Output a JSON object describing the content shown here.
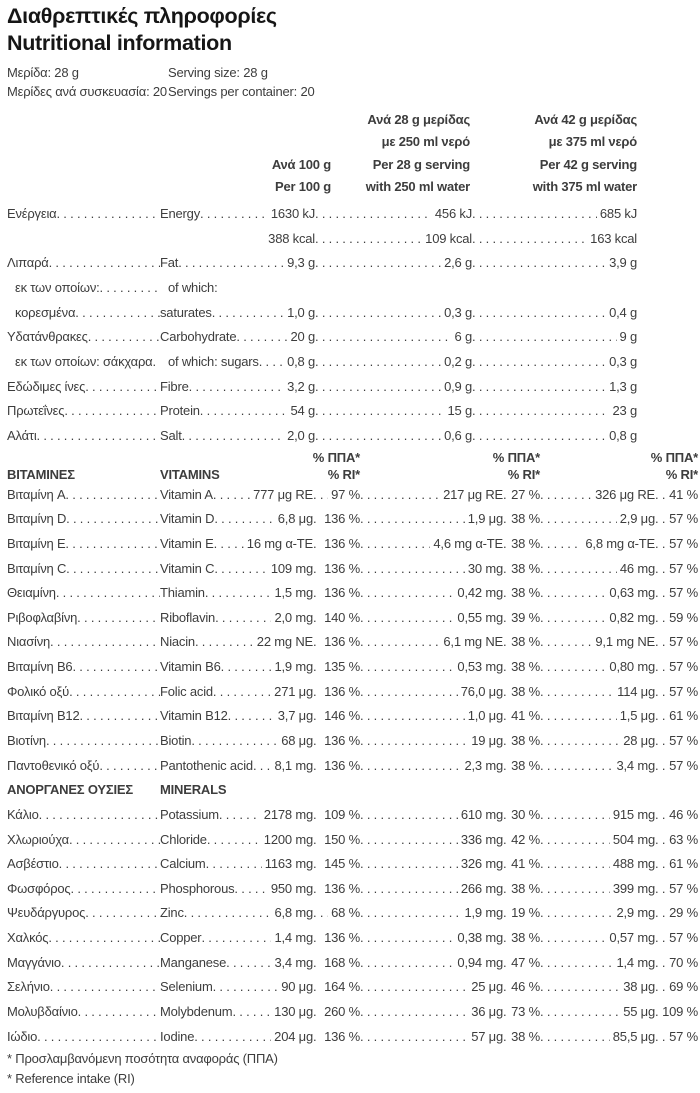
{
  "colors": {
    "text": "#3d3d3d",
    "heading": "#161616"
  },
  "title": {
    "el": "Διαθρεπτικές πληροφορίες",
    "en": "Nutritional information"
  },
  "serving": {
    "size_el": "Μερίδα: 28 g",
    "size_en": "Serving size: 28 g",
    "count_el": "Μερίδες ανά συσκευασία: 20",
    "count_en": "Servings per container: 20"
  },
  "columns": {
    "col1": [
      "Ανά 100 g",
      "Per 100 g"
    ],
    "col2": [
      "Ανά 28 g μερίδας",
      "με 250 ml νερό",
      "Per 28 g serving",
      "with 250 ml water"
    ],
    "col3": [
      "Ανά 42 g μερίδας",
      "με 375 ml νερό",
      "Per 42 g serving",
      "with 375 ml water"
    ]
  },
  "pct_header": {
    "line1": "% ΠΠΑ*",
    "line2": "% RI*"
  },
  "macros": [
    {
      "el": "Ενέργεια",
      "en": "Energy",
      "vals": [
        "1630 kJ",
        "456 kJ",
        "685 kJ"
      ]
    },
    {
      "el": "",
      "en": "",
      "vals": [
        "388 kcal",
        "109 kcal",
        "163 kcal"
      ]
    },
    {
      "el": "Λιπαρά",
      "en": "Fat",
      "vals": [
        "9,3 g",
        "2,6 g",
        "3,9 g"
      ]
    },
    {
      "el": "εκ των οποίων:",
      "en": "of which:",
      "si": true,
      "sie": true,
      "vals": [
        "",
        "",
        ""
      ]
    },
    {
      "el": "κορεσμένα",
      "en": "saturates",
      "si": true,
      "vals": [
        "1,0 g",
        "0,3 g",
        "0,4 g"
      ]
    },
    {
      "el": "Υδατάνθρακες",
      "en": "Carbohydrate",
      "vals": [
        "20 g",
        "6 g",
        "9 g"
      ]
    },
    {
      "el": "εκ των οποίων: σάκχαρα",
      "en": "of which: sugars",
      "si": true,
      "sie": true,
      "vals": [
        "0,8 g",
        "0,2 g",
        "0,3 g"
      ]
    },
    {
      "el": "Εδώδιμες ίνες",
      "en": "Fibre",
      "vals": [
        "3,2 g",
        "0,9 g",
        "1,3 g"
      ]
    },
    {
      "el": "Πρωτεΐνες",
      "en": "Protein",
      "vals": [
        "54 g",
        "15 g",
        "23 g"
      ]
    },
    {
      "el": "Αλάτι",
      "en": "Salt",
      "vals": [
        "2,0 g",
        "0,6 g",
        "0,8 g"
      ]
    }
  ],
  "vitamins_header": {
    "el": "ΒΙΤΑΜΙΝΕΣ",
    "en": "VITAMINS"
  },
  "vitamins": [
    {
      "el": "Βιταμίνη A",
      "en": "Vitamin A",
      "vals": [
        "777 μg RE",
        "97 %",
        "217 μg RE",
        "27 %",
        "326 μg RE",
        "41 %"
      ]
    },
    {
      "el": "Βιταμίνη D",
      "en": "Vitamin D",
      "vals": [
        "6,8 μg",
        "136 %",
        "1,9 μg",
        "38 %",
        "2,9 μg",
        "57 %"
      ]
    },
    {
      "el": "Βιταμίνη E",
      "en": "Vitamin E",
      "vals": [
        "16 mg α-TE",
        "136 %",
        "4,6 mg α-TE",
        "38 %",
        "6,8 mg α-TE",
        "57 %"
      ]
    },
    {
      "el": "Βιταμίνη C",
      "en": "Vitamin C",
      "vals": [
        "109 mg",
        "136 %",
        "30 mg",
        "38 %",
        "46 mg",
        "57 %"
      ]
    },
    {
      "el": "Θειαμίνη",
      "en": "Thiamin",
      "vals": [
        "1,5 mg",
        "136 %",
        "0,42 mg",
        "38 %",
        "0,63 mg",
        "57 %"
      ]
    },
    {
      "el": "Ριβοφλαβίνη",
      "en": "Riboflavin",
      "vals": [
        "2,0 mg",
        "140 %",
        "0,55 mg",
        "39 %",
        "0,82 mg",
        "59 %"
      ]
    },
    {
      "el": "Νιασίνη",
      "en": "Niacin",
      "vals": [
        "22 mg NE",
        "136 %",
        "6,1 mg NE",
        "38 %",
        "9,1 mg NE",
        "57 %"
      ]
    },
    {
      "el": "Βιταμίνη B6",
      "en": "Vitamin B6",
      "vals": [
        "1,9 mg",
        "135 %",
        "0,53 mg",
        "38 %",
        "0,80 mg",
        "57 %"
      ]
    },
    {
      "el": "Φολικό οξύ",
      "en": "Folic acid",
      "vals": [
        "271 μg",
        "136 %",
        "76,0 μg",
        "38 %",
        "114 μg",
        "57 %"
      ]
    },
    {
      "el": "Βιταμίνη B12",
      "en": "Vitamin B12",
      "vals": [
        "3,7 μg",
        "146 %",
        "1,0 μg",
        "41 %",
        "1,5 μg",
        "61 %"
      ]
    },
    {
      "el": "Βιοτίνη",
      "en": "Biotin",
      "vals": [
        "68 μg",
        "136 %",
        "19 μg",
        "38 %",
        "28 μg",
        "57 %"
      ]
    },
    {
      "el": "Παντοθενικό οξύ",
      "en": "Pantothenic acid",
      "vals": [
        "8,1 mg",
        "136 %",
        "2,3 mg",
        "38 %",
        "3,4 mg",
        "57 %"
      ]
    }
  ],
  "minerals_header": {
    "el": "ΑΝΟΡΓΑΝΕΣ ΟΥΣΙΕΣ",
    "en": "MINERALS"
  },
  "minerals": [
    {
      "el": "Κάλιο",
      "en": "Potassium",
      "vals": [
        "2178 mg",
        "109 %",
        "610 mg",
        "30 %",
        "915 mg",
        "46 %"
      ]
    },
    {
      "el": "Χλωριούχα",
      "en": "Chloride",
      "vals": [
        "1200 mg",
        "150 %",
        "336 mg",
        "42 %",
        "504 mg",
        "63 %"
      ]
    },
    {
      "el": "Ασβέστιο",
      "en": "Calcium",
      "vals": [
        "1163 mg",
        "145 %",
        "326 mg",
        "41 %",
        "488 mg",
        "61 %"
      ]
    },
    {
      "el": "Φωσφόρος",
      "en": "Phosphorous",
      "vals": [
        "950 mg",
        "136 %",
        "266 mg",
        "38 %",
        "399 mg",
        "57 %"
      ]
    },
    {
      "el": "Ψευδάργυρος",
      "en": "Zinc",
      "vals": [
        "6,8 mg",
        "68 %",
        "1,9 mg",
        "19 %",
        "2,9 mg",
        "29 %"
      ]
    },
    {
      "el": "Χαλκός",
      "en": "Copper",
      "vals": [
        "1,4 mg",
        "136 %",
        "0,38 mg",
        "38 %",
        "0,57 mg",
        "57 %"
      ]
    },
    {
      "el": "Μαγγάνιο",
      "en": "Manganese",
      "vals": [
        "3,4 mg",
        "168 %",
        "0,94 mg",
        "47 %",
        "1,4 mg",
        "70 %"
      ]
    },
    {
      "el": "Σελήνιο",
      "en": "Selenium",
      "vals": [
        "90 μg",
        "164 %",
        "25 μg",
        "46 %",
        "38 μg",
        "69 %"
      ]
    },
    {
      "el": "Μολυβδαίνιο",
      "en": "Molybdenum",
      "vals": [
        "130 μg",
        "260 %",
        "36 μg",
        "73 %",
        "55 μg",
        "109 %"
      ]
    },
    {
      "el": "Ιώδιο",
      "en": "Iodine",
      "vals": [
        "204 μg",
        "136 %",
        "57 μg",
        "38 %",
        "85,5 μg",
        "57 %"
      ]
    }
  ],
  "footnotes": [
    "* Προσλαμβανόμενη ποσότητα αναφοράς (ΠΠΑ)",
    "* Reference intake (RI)"
  ]
}
